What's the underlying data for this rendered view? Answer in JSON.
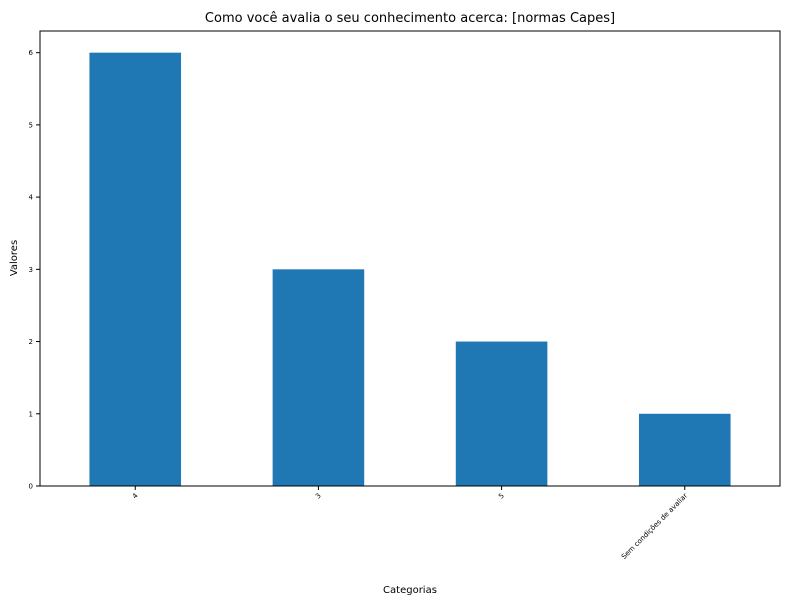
{
  "chart_data": {
    "type": "bar",
    "title": "Como você avalia o seu conhecimento acerca: [normas Capes]",
    "xlabel": "Categorias",
    "ylabel": "Valores",
    "categories": [
      "4",
      "3",
      "5",
      "Sem condições de avaliar"
    ],
    "values": [
      6,
      3,
      2,
      1
    ],
    "ylim": [
      0,
      6.3
    ],
    "yticks": [
      0,
      1,
      2,
      3,
      4,
      5,
      6
    ],
    "grid": false,
    "legend": "none",
    "bar_color": "#1f77b4"
  }
}
